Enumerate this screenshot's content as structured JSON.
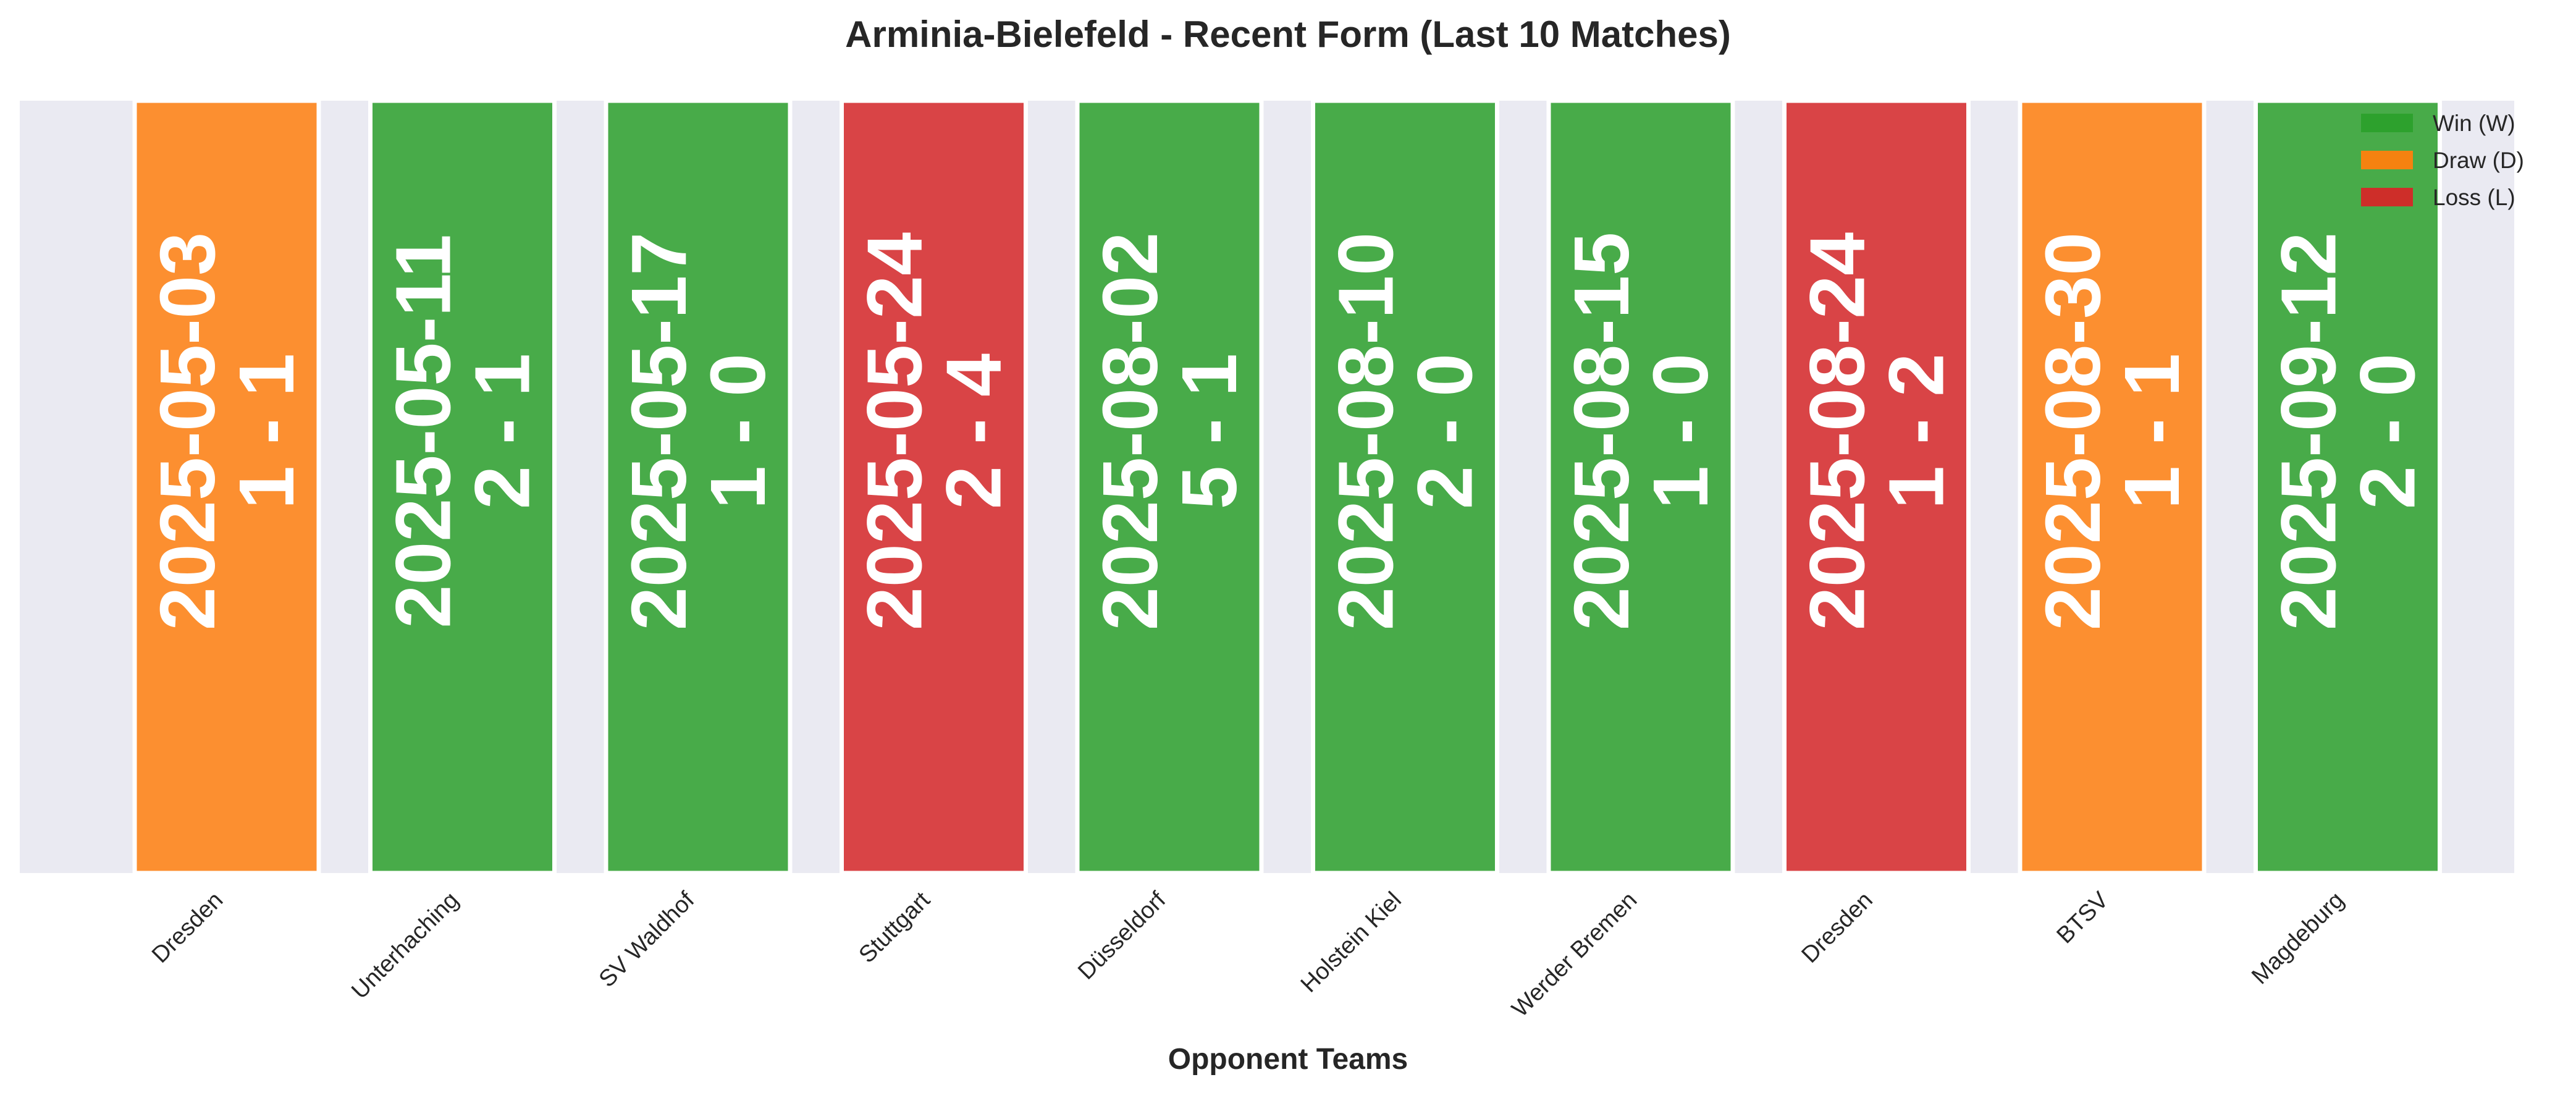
{
  "chart_data": {
    "type": "bar",
    "title": "Arminia-Bielefeld - Recent Form (Last 10 Matches)",
    "xlabel": "Opponent Teams",
    "ylabel": "",
    "grid": false,
    "legend_position": "top-right",
    "categories": [
      "Dresden",
      "Unterhaching",
      "SV Waldhof",
      "Stuttgart",
      "Düsseldorf",
      "Holstein Kiel",
      "Werder Bremen",
      "Dresden",
      "BTSV",
      "Magdeburg"
    ],
    "values": [
      1,
      1,
      1,
      1,
      1,
      1,
      1,
      1,
      1,
      1
    ],
    "ylim": [
      0,
      1
    ],
    "dates": [
      "2025-05-03",
      "2025-05-11",
      "2025-05-17",
      "2025-05-24",
      "2025-08-02",
      "2025-08-10",
      "2025-08-15",
      "2025-08-24",
      "2025-08-30",
      "2025-09-12"
    ],
    "scores": [
      "1 - 1",
      "2 - 1",
      "1 - 0",
      "2 - 4",
      "5 - 1",
      "2 - 0",
      "1 - 0",
      "1 - 2",
      "1 - 1",
      "2 - 0"
    ],
    "results": [
      "D",
      "W",
      "W",
      "L",
      "W",
      "W",
      "W",
      "L",
      "D",
      "W"
    ],
    "legend": [
      {
        "key": "W",
        "label": "Win (W)",
        "color": "#2ca02c"
      },
      {
        "key": "D",
        "label": "Draw (D)",
        "color": "#ff7f0e"
      },
      {
        "key": "L",
        "label": "Loss (L)",
        "color": "#d62728"
      }
    ],
    "plot_background": "#eaeaf2"
  }
}
